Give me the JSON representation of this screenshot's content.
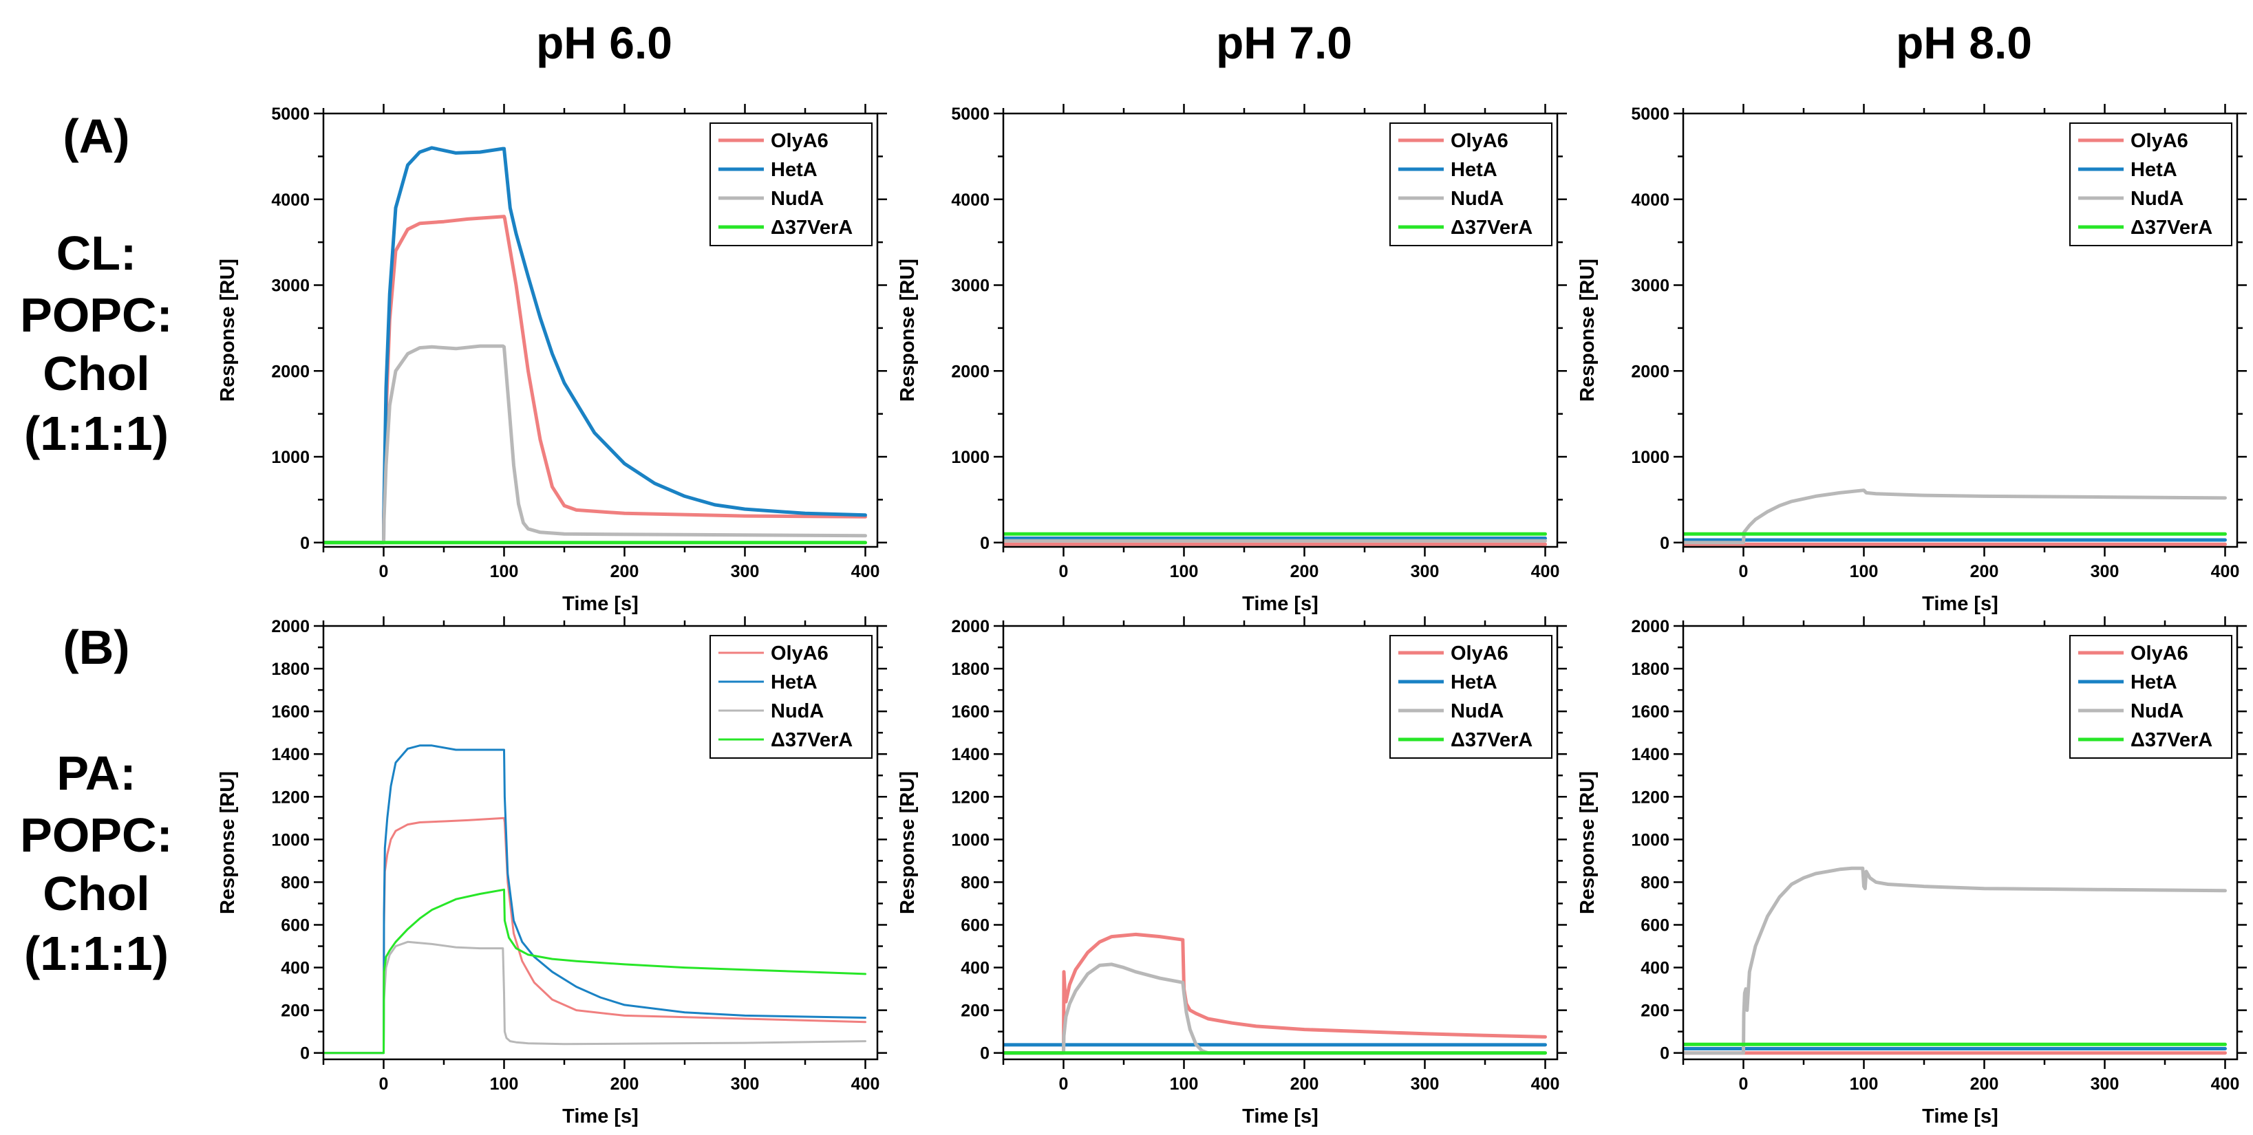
{
  "columns": [
    "pH 6.0",
    "pH 7.0",
    "pH 8.0"
  ],
  "rows": [
    {
      "panel": "(A)",
      "lines": [
        "CL:",
        "POPC:",
        "Chol",
        "(1:1:1)"
      ]
    },
    {
      "panel": "(B)",
      "lines": [
        "PA:",
        "POPC:",
        "Chol",
        "(1:1:1)"
      ]
    }
  ],
  "colors": {
    "OlyA6": "#f07f7f",
    "HetA": "#1a82c4",
    "NudA": "#b8b8b8",
    "d37VerA": "#27e627"
  },
  "chart_data": [
    {
      "type": "line",
      "row": 0,
      "col": 0,
      "xlabel": "Time [s]",
      "ylabel": "Response [RU]",
      "xlim": [
        -50,
        410
      ],
      "ylim": [
        -50,
        5000
      ],
      "xticks": [
        0,
        100,
        200,
        300,
        400
      ],
      "yticks": [
        0,
        1000,
        2000,
        3000,
        4000,
        5000
      ],
      "legend": "top-right",
      "stroke": 5,
      "series": [
        {
          "name": "OlyA6",
          "color": "#f07f7f",
          "x": [
            -50,
            0,
            0.1,
            2,
            5,
            10,
            20,
            30,
            50,
            70,
            100,
            100.5,
            110,
            120,
            130,
            140,
            150,
            160,
            200,
            300,
            400
          ],
          "y": [
            0,
            0,
            300,
            1500,
            2600,
            3400,
            3650,
            3720,
            3740,
            3770,
            3800,
            3780,
            3000,
            2000,
            1200,
            650,
            430,
            380,
            340,
            310,
            300
          ]
        },
        {
          "name": "HetA",
          "color": "#1a82c4",
          "x": [
            -50,
            0,
            0.1,
            2,
            5,
            10,
            20,
            30,
            40,
            60,
            80,
            99,
            100,
            105,
            110,
            120,
            130,
            140,
            150,
            175,
            200,
            225,
            250,
            275,
            300,
            350,
            400
          ],
          "y": [
            0,
            0,
            300,
            1800,
            2900,
            3900,
            4400,
            4550,
            4600,
            4540,
            4550,
            4590,
            4590,
            3900,
            3600,
            3100,
            2620,
            2200,
            1860,
            1280,
            920,
            690,
            540,
            440,
            390,
            340,
            320
          ]
        },
        {
          "name": "NudA",
          "color": "#b8b8b8",
          "x": [
            -50,
            0,
            0.1,
            2,
            5,
            10,
            20,
            30,
            40,
            60,
            80,
            99,
            100,
            104,
            108,
            112,
            116,
            120,
            130,
            150,
            400
          ],
          "y": [
            0,
            0,
            200,
            900,
            1600,
            2000,
            2200,
            2270,
            2280,
            2260,
            2290,
            2290,
            2280,
            1600,
            900,
            450,
            230,
            160,
            120,
            100,
            80
          ]
        },
        {
          "name": "Δ37VerA",
          "color": "#27e627",
          "x": [
            -50,
            400
          ],
          "y": [
            0,
            0
          ]
        }
      ]
    },
    {
      "type": "line",
      "row": 0,
      "col": 1,
      "xlabel": "Time [s]",
      "ylabel": "Response [RU]",
      "xlim": [
        -50,
        410
      ],
      "ylim": [
        -50,
        5000
      ],
      "xticks": [
        0,
        100,
        200,
        300,
        400
      ],
      "yticks": [
        0,
        1000,
        2000,
        3000,
        4000,
        5000
      ],
      "legend": "top-right",
      "stroke": 5,
      "series": [
        {
          "name": "OlyA6",
          "color": "#f07f7f",
          "x": [
            -50,
            400
          ],
          "y": [
            -20,
            -20
          ]
        },
        {
          "name": "HetA",
          "color": "#1a82c4",
          "x": [
            -50,
            400
          ],
          "y": [
            50,
            50
          ]
        },
        {
          "name": "NudA",
          "color": "#b8b8b8",
          "x": [
            -50,
            400
          ],
          "y": [
            20,
            20
          ]
        },
        {
          "name": "Δ37VerA",
          "color": "#27e627",
          "x": [
            -50,
            400
          ],
          "y": [
            100,
            100
          ]
        }
      ]
    },
    {
      "type": "line",
      "row": 0,
      "col": 2,
      "xlabel": "Time [s]",
      "ylabel": "Response [RU]",
      "xlim": [
        -50,
        410
      ],
      "ylim": [
        -50,
        5000
      ],
      "xticks": [
        0,
        100,
        200,
        300,
        400
      ],
      "yticks": [
        0,
        1000,
        2000,
        3000,
        4000,
        5000
      ],
      "legend": "top-right",
      "stroke": 5,
      "series": [
        {
          "name": "OlyA6",
          "color": "#f07f7f",
          "x": [
            -50,
            400
          ],
          "y": [
            -20,
            -20
          ]
        },
        {
          "name": "HetA",
          "color": "#1a82c4",
          "x": [
            -50,
            400
          ],
          "y": [
            30,
            30
          ]
        },
        {
          "name": "NudA",
          "color": "#b8b8b8",
          "x": [
            -50,
            0,
            0.5,
            5,
            10,
            20,
            30,
            40,
            60,
            80,
            100,
            102,
            110,
            150,
            200,
            300,
            400
          ],
          "y": [
            0,
            0,
            120,
            200,
            270,
            360,
            430,
            480,
            540,
            580,
            610,
            580,
            570,
            550,
            540,
            530,
            520
          ]
        },
        {
          "name": "Δ37VerA",
          "color": "#27e627",
          "x": [
            -50,
            400
          ],
          "y": [
            100,
            100
          ]
        }
      ]
    },
    {
      "type": "line",
      "row": 1,
      "col": 0,
      "xlabel": "Time [s]",
      "ylabel": "Response [RU]",
      "xlim": [
        -50,
        410
      ],
      "ylim": [
        -30,
        2000
      ],
      "xticks": [
        0,
        100,
        200,
        300,
        400
      ],
      "yticks": [
        0,
        200,
        400,
        600,
        800,
        1000,
        1200,
        1400,
        1600,
        1800,
        2000
      ],
      "legend": "top-right",
      "stroke": 3,
      "series": [
        {
          "name": "OlyA6",
          "color": "#f07f7f",
          "x": [
            -50,
            0,
            0.3,
            1,
            3,
            6,
            10,
            20,
            30,
            50,
            70,
            100,
            100.5,
            103,
            108,
            115,
            125,
            140,
            160,
            200,
            300,
            400
          ],
          "y": [
            0,
            0,
            600,
            850,
            930,
            1000,
            1040,
            1070,
            1080,
            1085,
            1090,
            1100,
            1080,
            800,
            560,
            430,
            330,
            250,
            200,
            175,
            160,
            145
          ]
        },
        {
          "name": "HetA",
          "color": "#1a82c4",
          "x": [
            -50,
            0,
            0.3,
            1,
            3,
            6,
            10,
            20,
            30,
            40,
            60,
            80,
            100,
            100.5,
            103,
            108,
            115,
            125,
            140,
            160,
            180,
            200,
            250,
            300,
            400
          ],
          "y": [
            0,
            0,
            650,
            960,
            1100,
            1250,
            1360,
            1425,
            1440,
            1440,
            1420,
            1420,
            1420,
            1200,
            840,
            620,
            520,
            450,
            380,
            310,
            260,
            225,
            190,
            175,
            165
          ]
        },
        {
          "name": "NudA",
          "color": "#b8b8b8",
          "x": [
            -50,
            0,
            0.3,
            2,
            5,
            10,
            20,
            40,
            60,
            80,
            99,
            100,
            100.5,
            102,
            105,
            110,
            120,
            150,
            200,
            300,
            400
          ],
          "y": [
            0,
            0,
            250,
            400,
            460,
            500,
            520,
            510,
            495,
            490,
            490,
            280,
            100,
            70,
            55,
            50,
            45,
            42,
            43,
            47,
            55
          ]
        },
        {
          "name": "Δ37VerA",
          "color": "#27e627",
          "x": [
            -50,
            0,
            0.3,
            2,
            5,
            10,
            20,
            30,
            40,
            60,
            80,
            100,
            100.5,
            104,
            110,
            120,
            140,
            160,
            200,
            250,
            300,
            350,
            400
          ],
          "y": [
            0,
            0,
            380,
            450,
            480,
            520,
            580,
            630,
            670,
            720,
            745,
            765,
            620,
            540,
            490,
            460,
            440,
            430,
            415,
            400,
            390,
            380,
            370
          ]
        }
      ]
    },
    {
      "type": "line",
      "row": 1,
      "col": 1,
      "xlabel": "Time [s]",
      "ylabel": "Response [RU]",
      "xlim": [
        -50,
        410
      ],
      "ylim": [
        -30,
        2000
      ],
      "xticks": [
        0,
        100,
        200,
        300,
        400
      ],
      "yticks": [
        0,
        200,
        400,
        600,
        800,
        1000,
        1200,
        1400,
        1600,
        1800,
        2000
      ],
      "legend": "top-right",
      "stroke": 5,
      "series": [
        {
          "name": "OlyA6",
          "color": "#f07f7f",
          "x": [
            -50,
            0,
            0.3,
            1,
            2,
            5,
            10,
            20,
            30,
            40,
            60,
            80,
            99,
            100,
            102,
            105,
            110,
            120,
            140,
            160,
            200,
            250,
            300,
            350,
            400
          ],
          "y": [
            0,
            0,
            380,
            300,
            240,
            320,
            390,
            470,
            520,
            545,
            555,
            545,
            530,
            300,
            230,
            200,
            185,
            160,
            140,
            125,
            110,
            100,
            90,
            82,
            75
          ]
        },
        {
          "name": "HetA",
          "color": "#1a82c4",
          "x": [
            -50,
            400
          ],
          "y": [
            38,
            38
          ]
        },
        {
          "name": "NudA",
          "color": "#b8b8b8",
          "x": [
            -50,
            0,
            0.3,
            2,
            5,
            10,
            20,
            30,
            40,
            50,
            60,
            80,
            99,
            100,
            102,
            105,
            110,
            115,
            120,
            130,
            400
          ],
          "y": [
            0,
            0,
            80,
            170,
            230,
            290,
            370,
            410,
            415,
            400,
            380,
            350,
            330,
            280,
            190,
            110,
            40,
            10,
            0,
            0,
            0
          ]
        },
        {
          "name": "Δ37VerA",
          "color": "#27e627",
          "x": [
            -50,
            400
          ],
          "y": [
            0,
            0
          ]
        }
      ]
    },
    {
      "type": "line",
      "row": 1,
      "col": 2,
      "xlabel": "Time [s]",
      "ylabel": "Response [RU]",
      "xlim": [
        -50,
        410
      ],
      "ylim": [
        -30,
        2000
      ],
      "xticks": [
        0,
        100,
        200,
        300,
        400
      ],
      "yticks": [
        0,
        200,
        400,
        600,
        800,
        1000,
        1200,
        1400,
        1600,
        1800,
        2000
      ],
      "legend": "top-right",
      "stroke": 5,
      "series": [
        {
          "name": "OlyA6",
          "color": "#f07f7f",
          "x": [
            -50,
            400
          ],
          "y": [
            0,
            0
          ]
        },
        {
          "name": "HetA",
          "color": "#1a82c4",
          "x": [
            -50,
            400
          ],
          "y": [
            20,
            20
          ]
        },
        {
          "name": "NudA",
          "color": "#b8b8b8",
          "x": [
            -50,
            0,
            0.3,
            1,
            2,
            3,
            5,
            10,
            20,
            30,
            40,
            50,
            60,
            70,
            80,
            90,
            99,
            100,
            101,
            102,
            105,
            110,
            120,
            150,
            200,
            300,
            400
          ],
          "y": [
            0,
            0,
            180,
            280,
            300,
            200,
            380,
            500,
            640,
            730,
            790,
            820,
            840,
            850,
            860,
            865,
            865,
            780,
            770,
            850,
            820,
            800,
            790,
            780,
            770,
            765,
            760
          ]
        },
        {
          "name": "Δ37VerA",
          "color": "#27e627",
          "x": [
            -50,
            400
          ],
          "y": [
            40,
            40
          ]
        }
      ]
    }
  ]
}
